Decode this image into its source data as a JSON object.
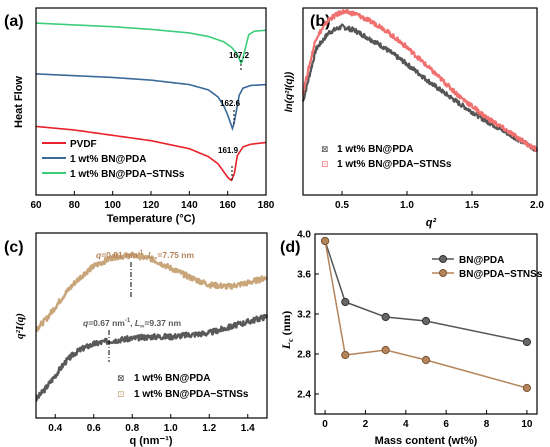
{
  "colors": {
    "red": "#e8212a",
    "blue": "#3a6a99",
    "green": "#3ccd7a",
    "salmon": "#f07070",
    "gray": "#555555",
    "brown": "#b5845a",
    "lightbrown": "#c9a57a",
    "darkgray": "#595959"
  },
  "panels": {
    "a": {
      "label": "(a)"
    },
    "b": {
      "label": "(b)"
    },
    "c": {
      "label": "(c)"
    },
    "d": {
      "label": "(d)"
    }
  },
  "chart_data": [
    {
      "id": "a",
      "type": "line",
      "xlabel": "Temperature (°C)",
      "ylabel": "Heat Flow",
      "xlim": [
        60,
        180
      ],
      "xticks": [
        "60",
        "80",
        "100",
        "120",
        "140",
        "160",
        "180"
      ],
      "series": [
        {
          "name": "PVDF",
          "color": "red",
          "peak_temperature": 161.9,
          "x": [
            60,
            80,
            100,
            120,
            140,
            150,
            155,
            158,
            160,
            161.9,
            163.5,
            165,
            168,
            172,
            180
          ],
          "y": [
            0.47,
            0.43,
            0.37,
            0.31,
            0.22,
            0.13,
            0.05,
            -0.04,
            -0.1,
            -0.14,
            -0.06,
            0.14,
            0.24,
            0.27,
            0.29
          ]
        },
        {
          "name": "1 wt% BN@PDA",
          "color": "blue",
          "peak_temperature": 162.6,
          "x": [
            60,
            80,
            100,
            120,
            140,
            150,
            155,
            158,
            160,
            162.6,
            164,
            166,
            168,
            172,
            180
          ],
          "y": [
            1.06,
            1.04,
            1.02,
            0.99,
            0.94,
            0.88,
            0.8,
            0.7,
            0.6,
            0.44,
            0.58,
            0.82,
            0.9,
            0.93,
            0.94
          ]
        },
        {
          "name": "1 wt% BN@PDA−STNSs",
          "color": "green",
          "peak_temperature": 167.2,
          "x": [
            60,
            80,
            100,
            120,
            140,
            150,
            158,
            162,
            165,
            167.2,
            169,
            171,
            174,
            180
          ],
          "y": [
            1.63,
            1.61,
            1.59,
            1.56,
            1.52,
            1.48,
            1.42,
            1.36,
            1.28,
            1.17,
            1.33,
            1.5,
            1.54,
            1.55
          ]
        }
      ],
      "annotations": [
        "167.2",
        "162.6",
        "161.9"
      ]
    },
    {
      "id": "b",
      "type": "scatter",
      "xlabel": "q²",
      "ylabel": "ln(q²I(q))",
      "xlim": [
        0.2,
        2.0
      ],
      "xticks": [
        "0.5",
        "1.0",
        "1.5",
        "2.0"
      ],
      "series": [
        {
          "name": "1 wt% BN@PDA",
          "color": "gray",
          "x": [
            0.2,
            0.3,
            0.4,
            0.5,
            0.6,
            0.8,
            1.0,
            1.2,
            1.4,
            1.6,
            1.8,
            2.0
          ],
          "y": [
            0.5,
            0.78,
            0.87,
            0.9,
            0.88,
            0.8,
            0.7,
            0.59,
            0.49,
            0.4,
            0.32,
            0.24
          ]
        },
        {
          "name": "1 wt% BN@PDA−STNSs",
          "color": "salmon",
          "x": [
            0.2,
            0.3,
            0.4,
            0.5,
            0.6,
            0.8,
            1.0,
            1.2,
            1.4,
            1.6,
            1.8,
            2.0
          ],
          "y": [
            0.55,
            0.84,
            0.94,
            0.98,
            0.97,
            0.9,
            0.79,
            0.66,
            0.53,
            0.42,
            0.33,
            0.24
          ]
        }
      ]
    },
    {
      "id": "c",
      "type": "scatter",
      "xlabel": "q (nm⁻¹)",
      "ylabel": "q²I(q)",
      "xlim": [
        0.3,
        1.5
      ],
      "xticks": [
        "0.4",
        "0.6",
        "0.8",
        "1.0",
        "1.2",
        "1.4"
      ],
      "series": [
        {
          "name": "1 wt% BN@PDA",
          "color": "darkgray",
          "x": [
            0.3,
            0.35,
            0.4,
            0.45,
            0.5,
            0.55,
            0.6,
            0.67,
            0.75,
            0.8,
            0.9,
            1.0,
            1.1,
            1.2,
            1.3,
            1.4,
            1.5
          ],
          "y": [
            0.1,
            0.16,
            0.23,
            0.3,
            0.35,
            0.38,
            0.4,
            0.415,
            0.425,
            0.43,
            0.44,
            0.44,
            0.45,
            0.46,
            0.49,
            0.52,
            0.55
          ]
        },
        {
          "name": "1 wt% BN@PDA−STNSs",
          "color": "lightbrown",
          "x": [
            0.3,
            0.35,
            0.4,
            0.45,
            0.5,
            0.55,
            0.6,
            0.7,
            0.8,
            0.9,
            1.0,
            1.1,
            1.2,
            1.3,
            1.4,
            1.5
          ],
          "y": [
            0.48,
            0.53,
            0.6,
            0.67,
            0.73,
            0.78,
            0.82,
            0.87,
            0.88,
            0.86,
            0.81,
            0.76,
            0.72,
            0.71,
            0.73,
            0.76
          ]
        }
      ],
      "annotations": [
        {
          "q": "q",
          "text": "=0.81 nm",
          "sup": "-1",
          "sep": ", ",
          "L": "L",
          "sub": "∞",
          "val": "=7.75 nm",
          "color": "brown"
        },
        {
          "q": "q",
          "text": "=0.67 nm",
          "sup": "-1",
          "sep": ", ",
          "L": "L",
          "sub": "∞",
          "val": "=9.37 nm",
          "color": "darkgray"
        }
      ]
    },
    {
      "id": "d",
      "type": "line",
      "xlabel": "Mass content (wt%)",
      "ylabel": "Lc (nm)",
      "ylabel_main": "L",
      "ylabel_sub": "c",
      "ylabel_unit": " (nm)",
      "xlim": [
        -0.5,
        10.5
      ],
      "ylim": [
        2.2,
        4.0
      ],
      "xticks": [
        "0",
        "2",
        "4",
        "6",
        "8",
        "10"
      ],
      "yticks": [
        "2.4",
        "2.8",
        "3.2",
        "3.6",
        "4.0"
      ],
      "series": [
        {
          "name": "BN@PDA",
          "color": "gray",
          "x": [
            0,
            1,
            3,
            5,
            10
          ],
          "y": [
            3.93,
            3.32,
            3.17,
            3.13,
            2.92
          ]
        },
        {
          "name": "BN@PDA−STNSs",
          "color": "brown",
          "x": [
            0,
            1,
            3,
            5,
            10
          ],
          "y": [
            3.93,
            2.79,
            2.84,
            2.74,
            2.46
          ]
        }
      ]
    }
  ]
}
